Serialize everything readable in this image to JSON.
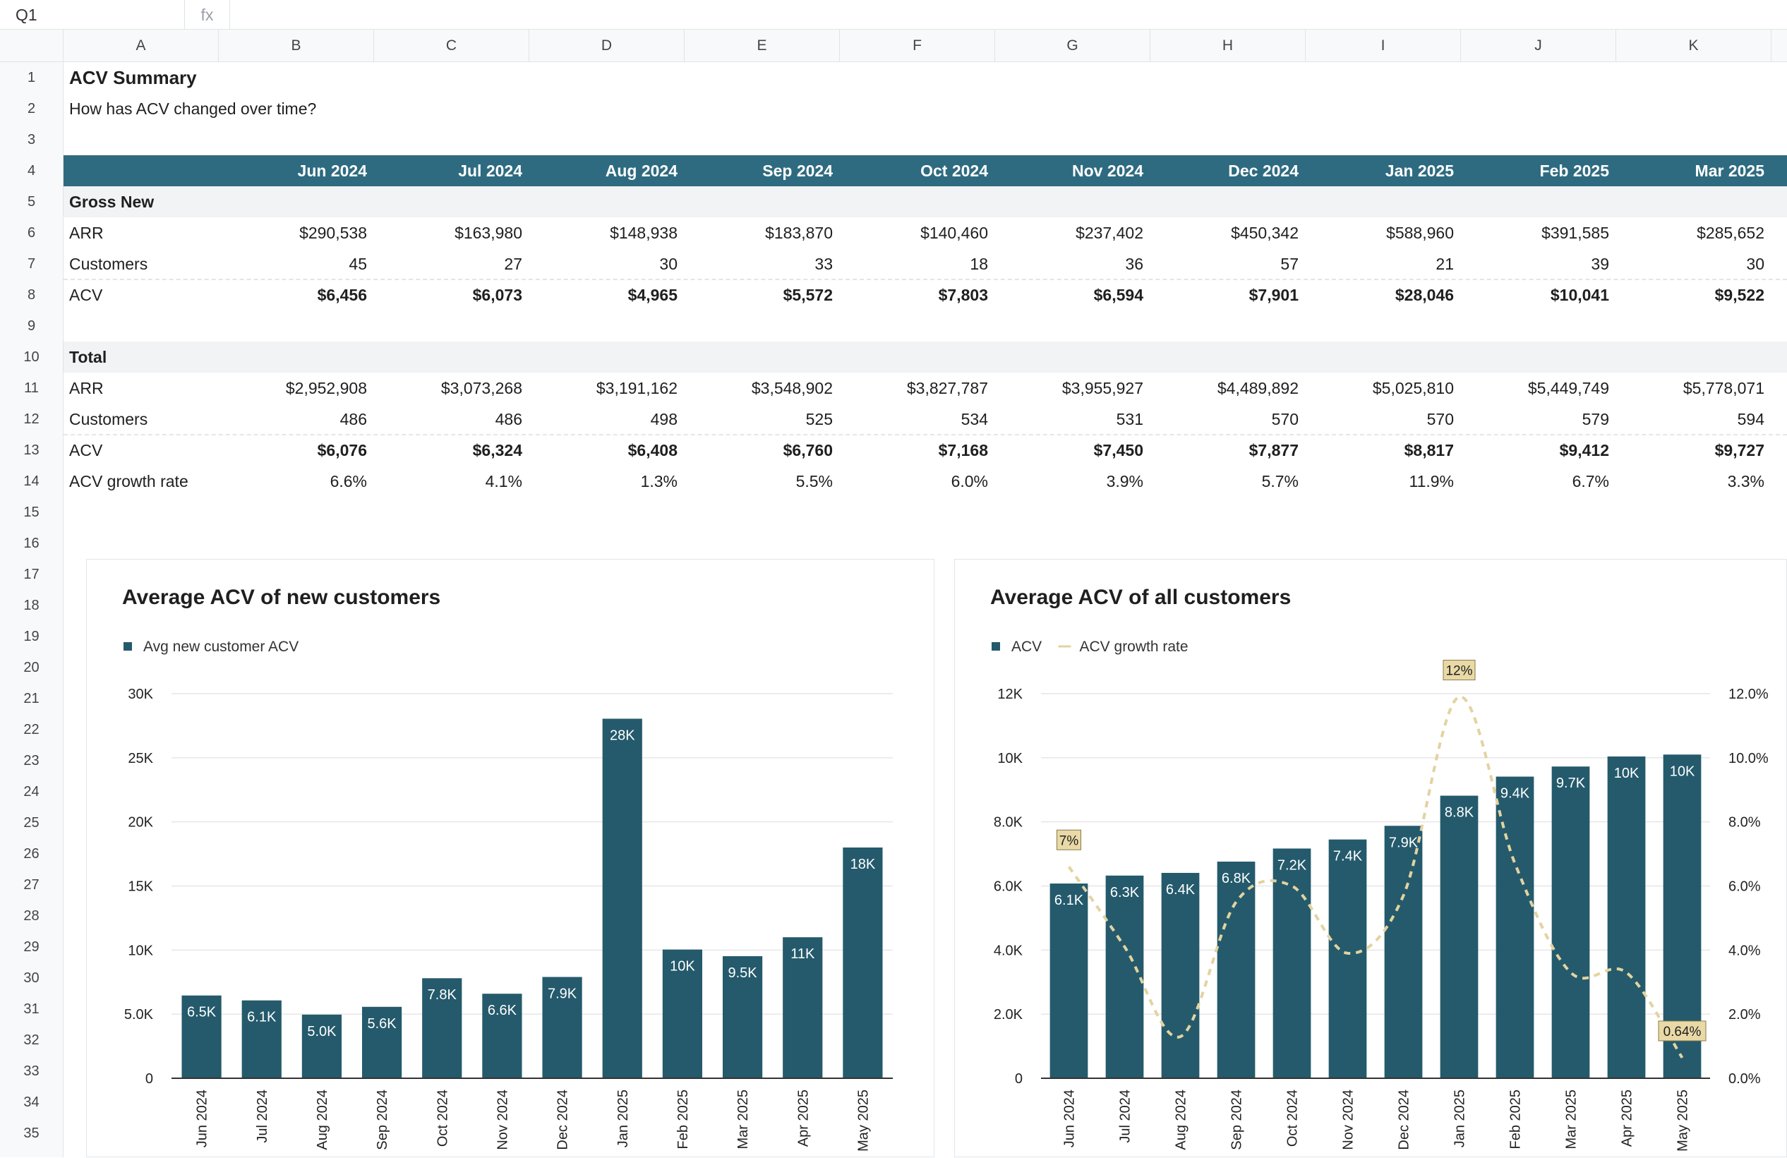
{
  "formula_bar": {
    "cell_ref": "Q1",
    "fx": "fx",
    "formula": ""
  },
  "columns": [
    "A",
    "B",
    "C",
    "D",
    "E",
    "F",
    "G",
    "H",
    "I",
    "J",
    "K"
  ],
  "rows": [
    "1",
    "2",
    "3",
    "4",
    "5",
    "6",
    "7",
    "8",
    "9",
    "10",
    "11",
    "12",
    "13",
    "14",
    "15",
    "16",
    "17",
    "18",
    "19",
    "20",
    "21",
    "22",
    "23",
    "24",
    "25",
    "26",
    "27",
    "28",
    "29",
    "30",
    "31",
    "32",
    "33",
    "34",
    "35"
  ],
  "sheet": {
    "title": "ACV Summary",
    "subtitle": "How has ACV changed over time?",
    "months": [
      "Jun 2024",
      "Jul 2024",
      "Aug 2024",
      "Sep 2024",
      "Oct 2024",
      "Nov 2024",
      "Dec 2024",
      "Jan 2025",
      "Feb 2025",
      "Mar 2025"
    ],
    "gross_new": {
      "label": "Gross New",
      "rows": [
        {
          "label": "ARR",
          "bold": false,
          "values": [
            "$290,538",
            "$163,980",
            "$148,938",
            "$183,870",
            "$140,460",
            "$237,402",
            "$450,342",
            "$588,960",
            "$391,585",
            "$285,652"
          ]
        },
        {
          "label": "Customers",
          "bold": false,
          "values": [
            "45",
            "27",
            "30",
            "33",
            "18",
            "36",
            "57",
            "21",
            "39",
            "30"
          ]
        },
        {
          "label": "ACV",
          "bold": true,
          "values": [
            "$6,456",
            "$6,073",
            "$4,965",
            "$5,572",
            "$7,803",
            "$6,594",
            "$7,901",
            "$28,046",
            "$10,041",
            "$9,522"
          ]
        }
      ]
    },
    "total": {
      "label": "Total",
      "rows": [
        {
          "label": "ARR",
          "bold": false,
          "values": [
            "$2,952,908",
            "$3,073,268",
            "$3,191,162",
            "$3,548,902",
            "$3,827,787",
            "$3,955,927",
            "$4,489,892",
            "$5,025,810",
            "$5,449,749",
            "$5,778,071"
          ]
        },
        {
          "label": "Customers",
          "bold": false,
          "values": [
            "486",
            "486",
            "498",
            "525",
            "534",
            "531",
            "570",
            "570",
            "579",
            "594"
          ]
        },
        {
          "label": "ACV",
          "bold": true,
          "values": [
            "$6,076",
            "$6,324",
            "$6,408",
            "$6,760",
            "$7,168",
            "$7,450",
            "$7,877",
            "$8,817",
            "$9,412",
            "$9,727"
          ]
        },
        {
          "label": "ACV growth rate",
          "bold": false,
          "values": [
            "6.6%",
            "4.1%",
            "1.3%",
            "5.5%",
            "6.0%",
            "3.9%",
            "5.7%",
            "11.9%",
            "6.7%",
            "3.3%"
          ]
        }
      ]
    }
  },
  "colors": {
    "header_band": "#2e6b80",
    "bar": "#245a6c",
    "line": "#e3d3a0",
    "label_box": "#e9d9a6",
    "section_band": "#f1f3f4",
    "grid": "#e6e6e6"
  },
  "chart_data": [
    {
      "type": "bar",
      "title": "Average ACV of new customers",
      "legend": [
        "Avg new customer ACV"
      ],
      "legend_position": "top-left",
      "categories": [
        "Jun 2024",
        "Jul 2024",
        "Aug 2024",
        "Sep 2024",
        "Oct 2024",
        "Nov 2024",
        "Dec 2024",
        "Jan 2025",
        "Feb 2025",
        "Mar 2025",
        "Apr 2025",
        "May 2025"
      ],
      "series": [
        {
          "name": "Avg new customer ACV",
          "values": [
            6456,
            6073,
            4965,
            5572,
            7803,
            6594,
            7901,
            28046,
            10041,
            9522,
            11000,
            18000
          ],
          "labels": [
            "6.5K",
            "6.1K",
            "5.0K",
            "5.6K",
            "7.8K",
            "6.6K",
            "7.9K",
            "28K",
            "10K",
            "9.5K",
            "11K",
            "18K"
          ]
        }
      ],
      "ylim": [
        0,
        30000
      ],
      "yticks": [
        0,
        5000,
        10000,
        15000,
        20000,
        25000,
        30000
      ],
      "ytick_labels": [
        "0",
        "5.0K",
        "10K",
        "15K",
        "20K",
        "25K",
        "30K"
      ],
      "grid": true
    },
    {
      "type": "bar",
      "title": "Average ACV of all customers",
      "legend": [
        "ACV",
        "ACV growth rate"
      ],
      "legend_position": "top-left",
      "categories": [
        "Jun 2024",
        "Jul 2024",
        "Aug 2024",
        "Sep 2024",
        "Oct 2024",
        "Nov 2024",
        "Dec 2024",
        "Jan 2025",
        "Feb 2025",
        "Mar 2025",
        "Apr 2025",
        "May 2025"
      ],
      "series": [
        {
          "name": "ACV",
          "type": "bar",
          "axis": "left",
          "values": [
            6076,
            6324,
            6408,
            6760,
            7168,
            7450,
            7877,
            8817,
            9412,
            9727,
            10040,
            10100
          ],
          "labels": [
            "6.1K",
            "6.3K",
            "6.4K",
            "6.8K",
            "7.2K",
            "7.4K",
            "7.9K",
            "8.8K",
            "9.4K",
            "9.7K",
            "10K",
            "10K"
          ]
        },
        {
          "name": "ACV growth rate",
          "type": "line",
          "axis": "right",
          "style": "dashed",
          "values": [
            6.6,
            4.1,
            1.3,
            5.5,
            6.0,
            3.9,
            5.7,
            11.9,
            6.7,
            3.3,
            3.3,
            0.64
          ]
        }
      ],
      "point_labels": [
        {
          "index": 0,
          "text": "7%"
        },
        {
          "index": 7,
          "text": "12%"
        },
        {
          "index": 11,
          "text": "0.64%"
        }
      ],
      "ylim": [
        0,
        12000
      ],
      "yticks": [
        0,
        2000,
        4000,
        6000,
        8000,
        10000,
        12000
      ],
      "ytick_labels": [
        "0",
        "2.0K",
        "4.0K",
        "6.0K",
        "8.0K",
        "10K",
        "12K"
      ],
      "y2lim": [
        0,
        12
      ],
      "y2ticks": [
        0,
        2,
        4,
        6,
        8,
        10,
        12
      ],
      "y2tick_labels": [
        "0.0%",
        "2.0%",
        "4.0%",
        "6.0%",
        "8.0%",
        "10.0%",
        "12.0%"
      ],
      "grid": true
    }
  ]
}
